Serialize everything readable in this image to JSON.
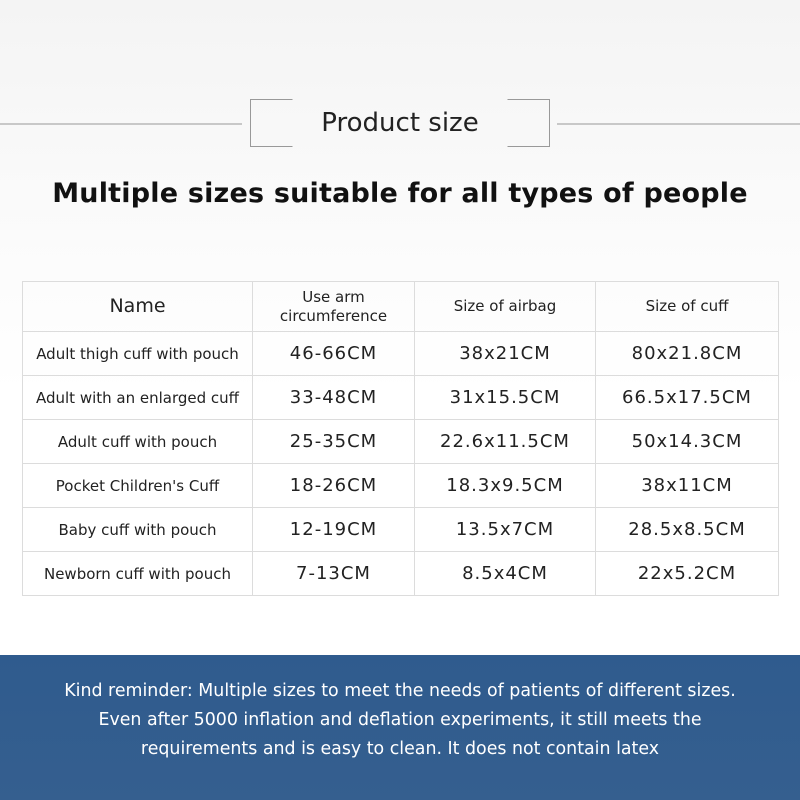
{
  "header": {
    "title": "Product size",
    "headline": "Multiple sizes suitable for all types of people"
  },
  "table": {
    "columns": [
      "Name",
      "Use arm circumference",
      "Size of airbag",
      "Size of cuff"
    ],
    "rows": [
      [
        "Adult thigh cuff with pouch",
        "46-66CM",
        "38x21CM",
        "80x21.8CM"
      ],
      [
        "Adult with an enlarged cuff",
        "33-48CM",
        "31x15.5CM",
        "66.5x17.5CM"
      ],
      [
        "Adult cuff with pouch",
        "25-35CM",
        "22.6x11.5CM",
        "50x14.3CM"
      ],
      [
        "Pocket Children's Cuff",
        "18-26CM",
        "18.3x9.5CM",
        "38x11CM"
      ],
      [
        "Baby cuff with pouch",
        "12-19CM",
        "13.5x7CM",
        "28.5x8.5CM"
      ],
      [
        "Newborn cuff with pouch",
        "7-13CM",
        "8.5x4CM",
        "22x5.2CM"
      ]
    ]
  },
  "reminder": {
    "lines": [
      "Kind reminder: Multiple sizes to meet the needs of patients of different sizes.",
      "Even after 5000 inflation and deflation experiments, it still meets the",
      "requirements and is easy to clean. It does not contain latex"
    ]
  },
  "colors": {
    "banner": "#2f5b8e",
    "text": "#222222",
    "border": "#dcdcdc"
  }
}
